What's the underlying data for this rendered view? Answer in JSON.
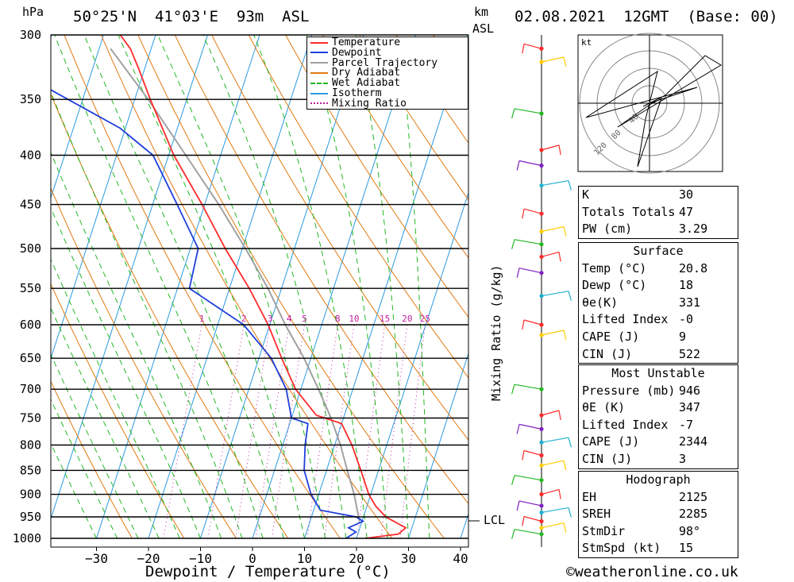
{
  "header": {
    "hpa_unit": "hPa",
    "location": "50°25'N  41°03'E  93m  ASL",
    "km_unit": "km",
    "asl_unit": "ASL",
    "datetime": "02.08.2021  12GMT  (Base: 00)"
  },
  "axis_labels": {
    "xlabel": "Dewpoint / Temperature (°C)",
    "mixing_label": "Mixing Ratio (g/kg)",
    "lcl": "LCL"
  },
  "copyright": "©weatheronline.co.uk",
  "hodograph": {
    "unit": "kt",
    "rings": [
      "40",
      "80",
      "120"
    ]
  },
  "legend": [
    {
      "label": "Temperature",
      "color": "#ff2a2a"
    },
    {
      "label": "Dewpoint",
      "color": "#1f3fdc"
    },
    {
      "label": "Parcel Trajectory",
      "color": "#a0a0a0"
    },
    {
      "label": "Dry Adiabat",
      "color": "#e07a10"
    },
    {
      "label": "Wet Adiabat",
      "color": "#22b822"
    },
    {
      "label": "Isotherm",
      "color": "#2a9ae0"
    },
    {
      "label": "Mixing Ratio",
      "color": "#c020a0"
    }
  ],
  "indices": {
    "general": [
      {
        "label": "K",
        "value": "30"
      },
      {
        "label": "Totals Totals",
        "value": "47"
      },
      {
        "label": "PW (cm)",
        "value": "3.29"
      }
    ],
    "surface_title": "Surface",
    "surface": [
      {
        "label": "Temp (°C)",
        "value": "20.8"
      },
      {
        "label": "Dewp (°C)",
        "value": "18"
      },
      {
        "label": "θe(K)",
        "value": "331"
      },
      {
        "label": "Lifted Index",
        "value": "-0"
      },
      {
        "label": "CAPE (J)",
        "value": "9"
      },
      {
        "label": "CIN (J)",
        "value": "522"
      }
    ],
    "unstable_title": "Most Unstable",
    "unstable": [
      {
        "label": "Pressure (mb)",
        "value": "946"
      },
      {
        "label": "θE (K)",
        "value": "347"
      },
      {
        "label": "Lifted Index",
        "value": "-7"
      },
      {
        "label": "CAPE (J)",
        "value": "2344"
      },
      {
        "label": "CIN (J)",
        "value": "3"
      }
    ],
    "hodo_title": "Hodograph",
    "hodo": [
      {
        "label": "EH",
        "value": "2125"
      },
      {
        "label": "SREH",
        "value": "2285"
      },
      {
        "label": "StmDir",
        "value": "98°"
      },
      {
        "label": "StmSpd (kt)",
        "value": "15"
      }
    ]
  },
  "chart_data": {
    "type": "line",
    "pressure_levels": [
      300,
      350,
      400,
      450,
      500,
      550,
      600,
      650,
      700,
      750,
      800,
      850,
      900,
      950,
      1000
    ],
    "temp_ticks": [
      -30,
      -20,
      -10,
      0,
      10,
      20,
      30,
      40
    ],
    "mixing_ratio_labels": [
      "1",
      "2",
      "3",
      "4",
      "5",
      "8",
      "10",
      "15",
      "20",
      "25"
    ],
    "mixing_ratio_values": [
      1,
      2,
      3,
      4,
      5,
      8,
      10,
      15,
      20,
      25
    ],
    "xlim": [
      -40,
      40
    ],
    "plim": [
      300,
      1000
    ],
    "skew_deg_per_log": 60,
    "temperature_profile": [
      {
        "p": 1000,
        "t": 21.7
      },
      {
        "p": 990,
        "t": 27.8
      },
      {
        "p": 975,
        "t": 28.8
      },
      {
        "p": 950,
        "t": 24.3
      },
      {
        "p": 925,
        "t": 21.6
      },
      {
        "p": 900,
        "t": 19.6
      },
      {
        "p": 850,
        "t": 16.6
      },
      {
        "p": 800,
        "t": 13.3
      },
      {
        "p": 760,
        "t": 10.0
      },
      {
        "p": 745,
        "t": 4.6
      },
      {
        "p": 700,
        "t": -1.0
      },
      {
        "p": 650,
        "t": -5.6
      },
      {
        "p": 600,
        "t": -10.3
      },
      {
        "p": 550,
        "t": -16.2
      },
      {
        "p": 500,
        "t": -23.3
      },
      {
        "p": 450,
        "t": -30.5
      },
      {
        "p": 400,
        "t": -39.0
      },
      {
        "p": 350,
        "t": -47.0
      },
      {
        "p": 325,
        "t": -51.2
      },
      {
        "p": 310,
        "t": -54.0
      },
      {
        "p": 300,
        "t": -56.8
      }
    ],
    "dewpoint_profile": [
      {
        "p": 1000,
        "t": 18.0
      },
      {
        "p": 985,
        "t": 19.5
      },
      {
        "p": 975,
        "t": 17.8
      },
      {
        "p": 960,
        "t": 20.2
      },
      {
        "p": 950,
        "t": 18.6
      },
      {
        "p": 935,
        "t": 11.3
      },
      {
        "p": 900,
        "t": 8.5
      },
      {
        "p": 850,
        "t": 5.7
      },
      {
        "p": 800,
        "t": 4.3
      },
      {
        "p": 760,
        "t": 3.5
      },
      {
        "p": 750,
        "t": 0.0
      },
      {
        "p": 700,
        "t": -2.8
      },
      {
        "p": 650,
        "t": -7.6
      },
      {
        "p": 600,
        "t": -15.0
      },
      {
        "p": 550,
        "t": -27.7
      },
      {
        "p": 500,
        "t": -28.5
      },
      {
        "p": 450,
        "t": -35.3
      },
      {
        "p": 400,
        "t": -43.0
      },
      {
        "p": 375,
        "t": -51.0
      },
      {
        "p": 340,
        "t": -67.8
      },
      {
        "p": 300,
        "t": -74.0
      }
    ],
    "parcel_profile": [
      {
        "p": 960,
        "t": 19.5
      },
      {
        "p": 900,
        "t": 16.8
      },
      {
        "p": 850,
        "t": 14.0
      },
      {
        "p": 800,
        "t": 11.1
      },
      {
        "p": 750,
        "t": 7.6
      },
      {
        "p": 700,
        "t": 3.4
      },
      {
        "p": 650,
        "t": -1.3
      },
      {
        "p": 600,
        "t": -7.0
      },
      {
        "p": 550,
        "t": -12.6
      },
      {
        "p": 500,
        "t": -19.4
      },
      {
        "p": 450,
        "t": -27.3
      },
      {
        "p": 400,
        "t": -36.7
      },
      {
        "p": 350,
        "t": -47.4
      },
      {
        "p": 310,
        "t": -57.8
      }
    ]
  }
}
